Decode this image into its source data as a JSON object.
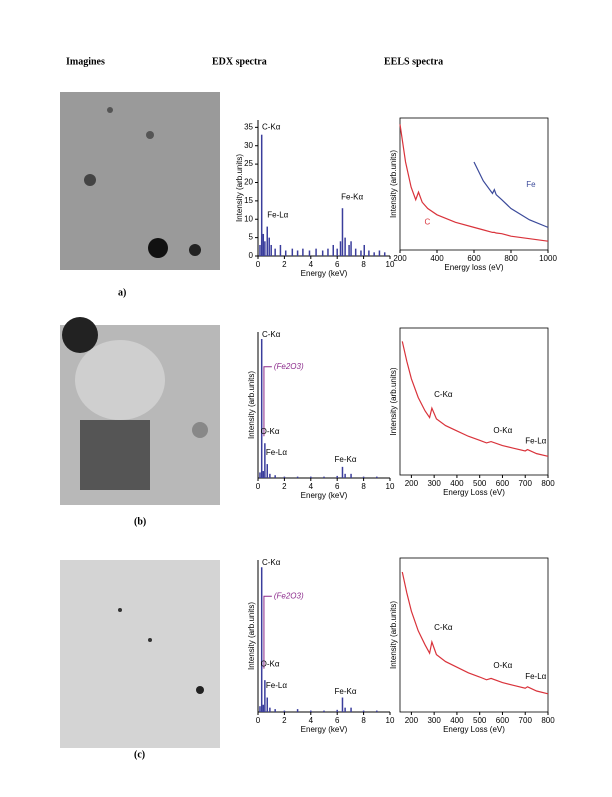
{
  "headers": [
    "Imagines",
    "EDX spectra",
    "EELS spectra"
  ],
  "labels": [
    "a)",
    "(b)",
    "(c)"
  ],
  "chart_data": [
    {
      "type": "bar",
      "ylabel": "Intensity (arb.units)",
      "xlabel": "Energy (keV)",
      "color": "#3a3d9c",
      "x": [
        0.15,
        0.28,
        0.4,
        0.52,
        0.7,
        0.85,
        1.0,
        1.3,
        1.7,
        2.1,
        2.6,
        3.0,
        3.4,
        3.9,
        4.4,
        4.9,
        5.3,
        5.7,
        6.0,
        6.25,
        6.4,
        6.6,
        6.9,
        7.05,
        7.4,
        7.8,
        8.05,
        8.4,
        8.8,
        9.2,
        9.6
      ],
      "values": [
        3,
        33,
        6,
        4,
        8,
        5,
        3,
        2,
        3,
        1.5,
        2,
        1.5,
        2,
        1.5,
        2,
        1.5,
        2,
        3,
        2,
        4,
        13,
        5,
        3,
        4,
        2,
        1.5,
        3,
        1.5,
        1,
        1.5,
        1
      ],
      "xlim": [
        0,
        10
      ],
      "xticks": [
        0,
        2,
        4,
        6,
        8,
        10
      ],
      "ylim": [
        0,
        37
      ],
      "yticks": [
        0,
        5,
        10,
        15,
        20,
        25,
        30,
        35
      ],
      "annotations": [
        "C-Kα",
        "Fe-Lα",
        "Fe-Kα"
      ]
    },
    {
      "type": "line",
      "ylabel": "Intensity (arb.units)",
      "xlabel": "Energy loss (eV)",
      "x": [
        200,
        230,
        260,
        285,
        300,
        320,
        350,
        400,
        500,
        600,
        650,
        700,
        710,
        720,
        750,
        800,
        900,
        1000
      ],
      "series": [
        {
          "name": "C",
          "color": "#d9333b",
          "values": [
            100,
            70,
            50,
            40,
            46,
            38,
            33,
            28,
            22,
            18,
            16,
            14,
            14,
            13.5,
            13,
            11,
            9,
            7
          ]
        },
        {
          "name": "Fe",
          "color": "#3b4a9a",
          "values": [
            null,
            null,
            null,
            null,
            null,
            null,
            null,
            null,
            null,
            70,
            55,
            45,
            48,
            44,
            40,
            33,
            24,
            18
          ]
        }
      ],
      "xlim": [
        200,
        1000
      ],
      "xticks": [
        200,
        400,
        600,
        800,
        1000
      ],
      "ylim": [
        0,
        105
      ]
    },
    {
      "type": "bar",
      "ylabel": "Intensity (arb.units)",
      "xlabel": "Energy (keV)",
      "color": "#3a3d9c",
      "x": [
        0.15,
        0.28,
        0.4,
        0.52,
        0.7,
        0.9,
        1.3,
        2.0,
        3.0,
        4.0,
        5.0,
        6.0,
        6.4,
        6.6,
        7.05,
        8.0,
        9.0
      ],
      "values": [
        4,
        100,
        5,
        25,
        10,
        3,
        2,
        1,
        1,
        1,
        1,
        1.5,
        8,
        3,
        3,
        1,
        1
      ],
      "xlim": [
        0,
        10
      ],
      "xticks": [
        0,
        2,
        4,
        6,
        8,
        10
      ],
      "ylim": [
        0,
        105
      ],
      "annotations": [
        "C-Kα",
        "(Fe2O3)",
        "O-Kα",
        "Fe-Lα",
        "Fe-Kα"
      ]
    },
    {
      "type": "line",
      "ylabel": "Intensity (arb.units)",
      "xlabel": "Energy Loss (eV)",
      "x": [
        160,
        180,
        200,
        230,
        260,
        280,
        290,
        310,
        350,
        400,
        450,
        500,
        530,
        550,
        600,
        650,
        700,
        710,
        750,
        800
      ],
      "series": [
        {
          "name": "",
          "color": "#d9333b",
          "values": [
            100,
            85,
            72,
            58,
            48,
            43,
            50,
            42,
            37,
            33,
            29,
            26,
            24,
            25,
            22,
            20,
            18,
            19,
            16,
            14
          ]
        }
      ],
      "xlim": [
        150,
        800
      ],
      "xticks": [
        200,
        300,
        400,
        500,
        600,
        700,
        800
      ],
      "ylim": [
        0,
        110
      ],
      "annotations": [
        "C-Kα",
        "O-Kα",
        "Fe-Lα"
      ]
    },
    {
      "type": "bar",
      "ylabel": "Intensity (arb.units)",
      "xlabel": "Energy (keV)",
      "color": "#3a3d9c",
      "x": [
        0.15,
        0.28,
        0.4,
        0.52,
        0.7,
        0.9,
        1.3,
        2.0,
        3.0,
        4.0,
        5.0,
        6.0,
        6.4,
        6.6,
        7.05,
        8.0,
        9.0
      ],
      "values": [
        4,
        100,
        5,
        22,
        10,
        3,
        2,
        1,
        2,
        1,
        1,
        1.5,
        10,
        3,
        3,
        1,
        1
      ],
      "xlim": [
        0,
        10
      ],
      "xticks": [
        0,
        2,
        4,
        6,
        8,
        10
      ],
      "ylim": [
        0,
        105
      ],
      "annotations": [
        "C-Kα",
        "(Fe2O3)",
        "O-Kα",
        "Fe-Lα",
        "Fe-Kα"
      ]
    },
    {
      "type": "line",
      "ylabel": "Intensity (arb.units)",
      "xlabel": "Energy Loss (eV)",
      "x": [
        160,
        180,
        200,
        230,
        260,
        280,
        290,
        310,
        350,
        400,
        450,
        500,
        530,
        550,
        600,
        650,
        700,
        710,
        750,
        800
      ],
      "series": [
        {
          "name": "",
          "color": "#d9333b",
          "values": [
            100,
            85,
            72,
            58,
            48,
            42,
            50,
            41,
            36,
            32,
            28,
            25,
            23,
            24,
            21,
            19,
            17,
            18,
            15,
            13
          ]
        }
      ],
      "xlim": [
        150,
        800
      ],
      "xticks": [
        200,
        300,
        400,
        500,
        600,
        700,
        800
      ],
      "ylim": [
        0,
        110
      ],
      "annotations": [
        "C-Kα",
        "O-Kα",
        "Fe-Lα"
      ]
    }
  ]
}
